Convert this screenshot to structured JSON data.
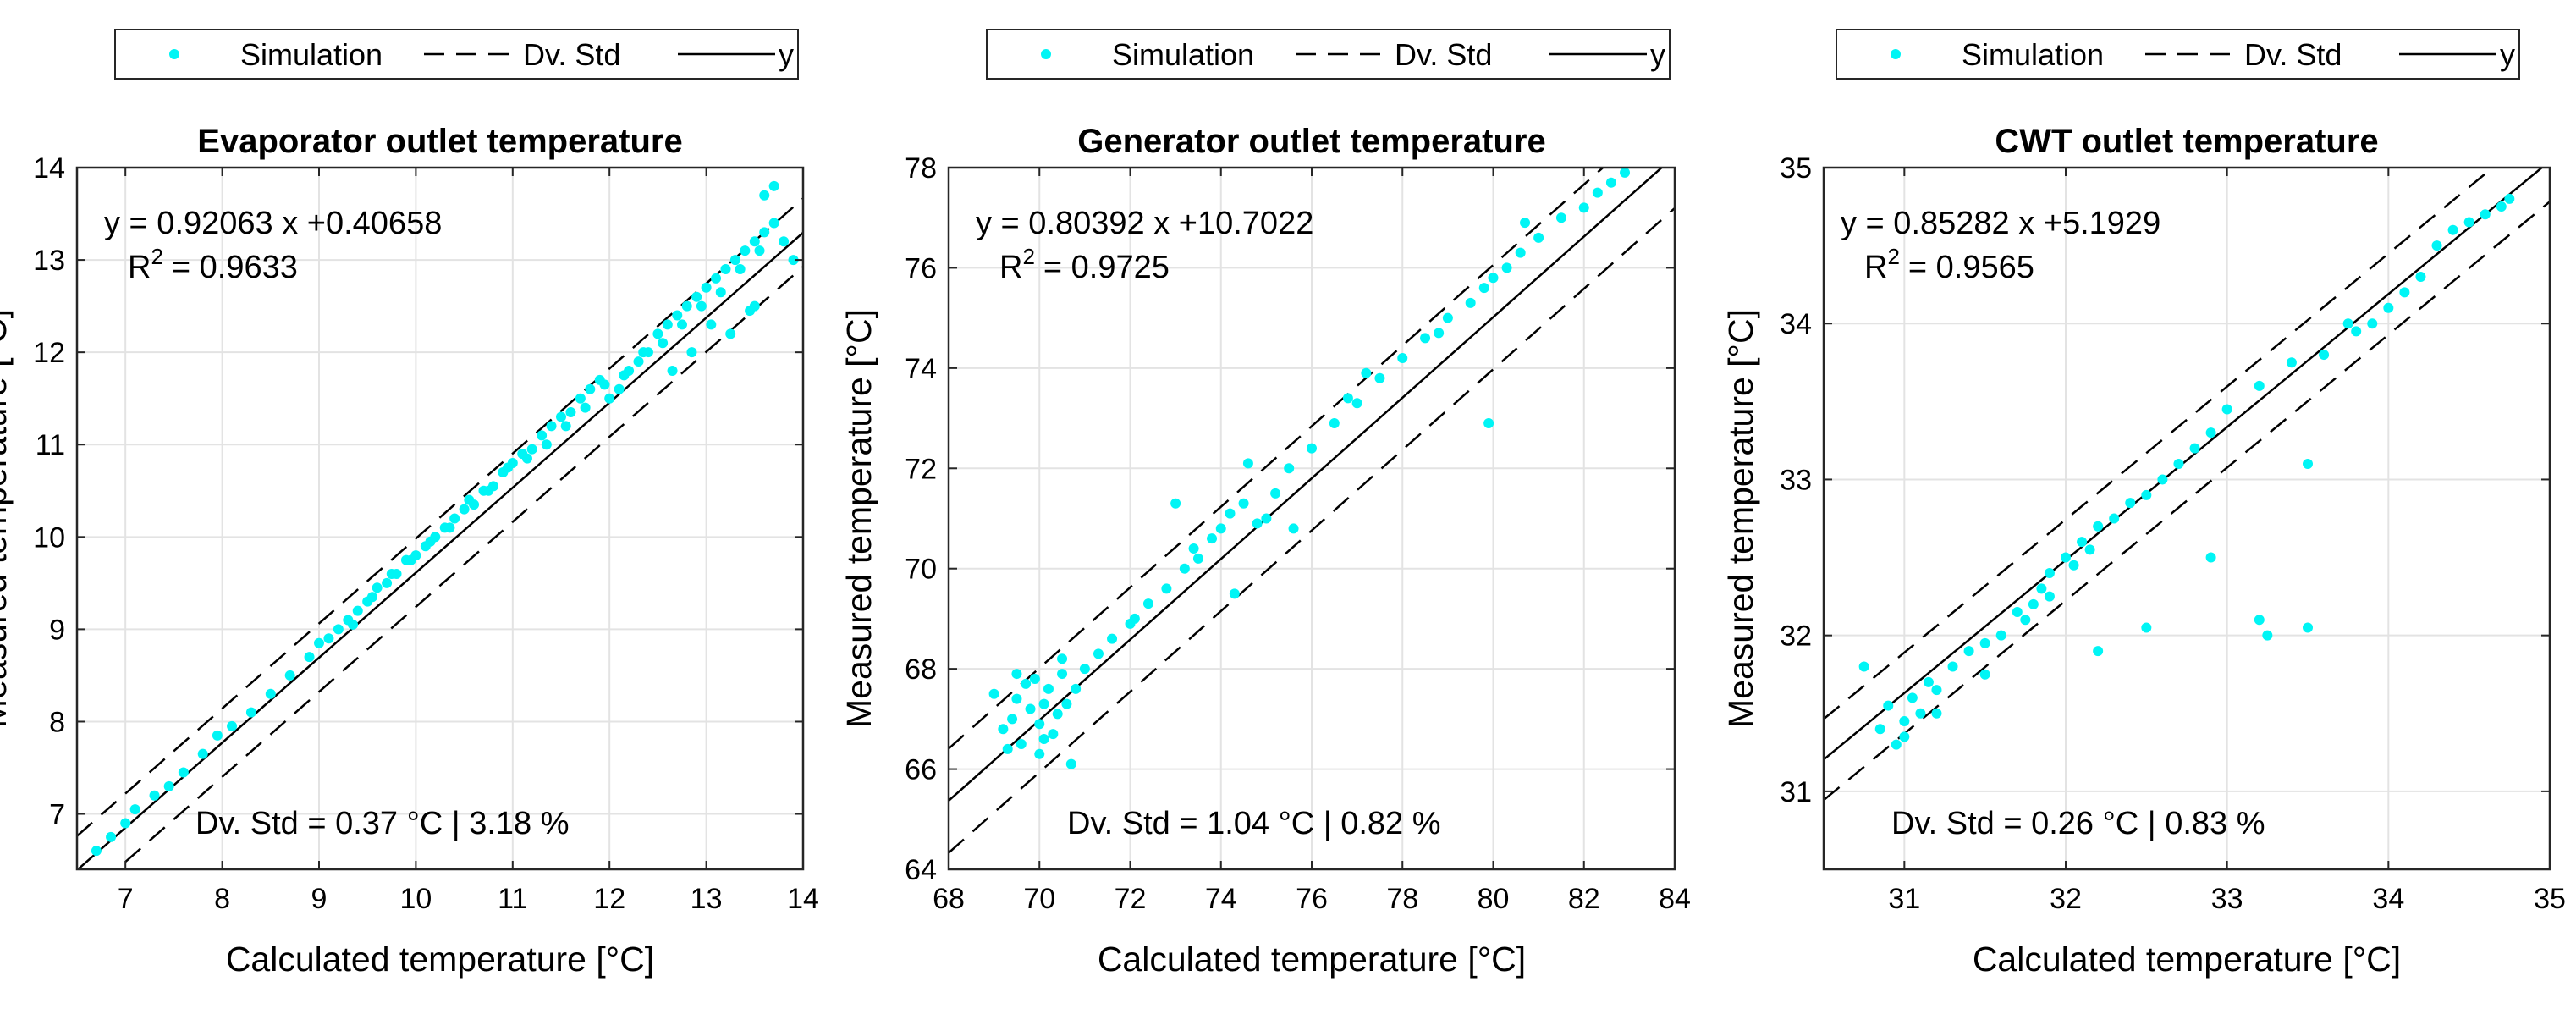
{
  "chart_data": [
    {
      "type": "scatter",
      "title": "Evaporator outlet temperature",
      "xlabel": "Calculated temperature [°C]",
      "ylabel": "Measured temperature [°C]",
      "xlim": [
        6.5,
        14
      ],
      "ylim": [
        6.4,
        14
      ],
      "xticks": [
        "7",
        "8",
        "9",
        "10",
        "11",
        "12",
        "13",
        "14"
      ],
      "yticks": [
        "7",
        "8",
        "9",
        "10",
        "11",
        "12",
        "13",
        "14"
      ],
      "xtick_values": [
        7,
        8,
        9,
        10,
        11,
        12,
        13,
        14
      ],
      "ytick_values": [
        7,
        8,
        9,
        10,
        11,
        12,
        13,
        14
      ],
      "grid": true,
      "legend": {
        "position": "top",
        "entries": [
          "Simulation",
          "Dv. Std",
          "y"
        ]
      },
      "fit": {
        "slope": 0.92063,
        "intercept": 0.40658,
        "offset": 0.37
      },
      "equation_text": "y = 0.92063 x +0.40658",
      "r2_prefix": "R",
      "r2_suffix": "= 0.9633",
      "std_text": "Dv. Std = 0.37 °C | 3.18 %",
      "colors": {
        "points": "#00f5f5",
        "lines": "#000000"
      },
      "series": [
        {
          "name": "Simulation",
          "x": [
            6.7,
            6.85,
            7.0,
            7.1,
            7.3,
            7.45,
            7.6,
            7.8,
            7.95,
            8.1,
            8.3,
            8.5,
            8.7,
            8.9,
            9.0,
            9.1,
            9.2,
            9.3,
            9.4,
            9.5,
            9.6,
            9.7,
            9.8,
            9.9,
            10.0,
            10.1,
            10.2,
            10.3,
            10.4,
            10.5,
            10.6,
            10.7,
            10.8,
            10.9,
            11.0,
            11.1,
            11.2,
            11.3,
            11.4,
            11.5,
            11.6,
            11.7,
            11.8,
            11.9,
            12.0,
            12.1,
            12.2,
            12.3,
            12.4,
            12.5,
            12.6,
            12.7,
            12.8,
            12.9,
            13.0,
            13.1,
            13.2,
            13.3,
            13.4,
            13.5,
            13.6,
            13.7,
            13.8,
            13.9,
            9.35,
            9.55,
            9.75,
            9.95,
            10.15,
            10.35,
            10.55,
            10.75,
            10.95,
            11.15,
            11.35,
            11.55,
            11.75,
            11.95,
            12.15,
            12.35,
            12.55,
            12.75,
            12.95,
            13.15,
            13.35,
            13.55,
            13.45,
            13.25,
            13.05,
            12.85,
            12.65,
            13.6,
            13.7,
            13.5
          ],
          "y": [
            6.6,
            6.75,
            6.9,
            7.05,
            7.2,
            7.3,
            7.45,
            7.65,
            7.85,
            7.95,
            8.1,
            8.3,
            8.5,
            8.7,
            8.85,
            8.9,
            9.0,
            9.1,
            9.2,
            9.3,
            9.45,
            9.5,
            9.6,
            9.75,
            9.8,
            9.9,
            10.0,
            10.1,
            10.2,
            10.3,
            10.35,
            10.5,
            10.55,
            10.7,
            10.8,
            10.9,
            10.95,
            11.1,
            11.2,
            11.3,
            11.35,
            11.5,
            11.6,
            11.7,
            11.5,
            11.6,
            11.8,
            11.9,
            12.0,
            12.2,
            12.3,
            12.4,
            12.5,
            12.6,
            12.7,
            12.8,
            12.9,
            13.0,
            13.1,
            13.2,
            13.3,
            13.4,
            13.2,
            13.0,
            9.05,
            9.35,
            9.6,
            9.75,
            9.95,
            10.1,
            10.4,
            10.5,
            10.75,
            10.85,
            11.0,
            11.2,
            11.4,
            11.65,
            11.75,
            12.0,
            12.1,
            12.3,
            12.5,
            12.65,
            12.9,
            13.1,
            12.45,
            12.2,
            12.3,
            12.0,
            11.8,
            13.7,
            13.8,
            12.5
          ]
        }
      ]
    },
    {
      "type": "scatter",
      "title": "Generator outlet temperature",
      "xlabel": "Calculated temperature [°C]",
      "ylabel": "Measured temperature [°C]",
      "xlim": [
        68,
        84
      ],
      "ylim": [
        64,
        78
      ],
      "xticks": [
        "68",
        "70",
        "72",
        "74",
        "76",
        "78",
        "80",
        "82",
        "84"
      ],
      "yticks": [
        "64",
        "66",
        "68",
        "70",
        "72",
        "74",
        "76",
        "78"
      ],
      "xtick_values": [
        68,
        70,
        72,
        74,
        76,
        78,
        80,
        82,
        84
      ],
      "ytick_values": [
        64,
        66,
        68,
        70,
        72,
        74,
        76,
        78
      ],
      "grid": true,
      "legend": {
        "position": "top",
        "entries": [
          "Simulation",
          "Dv. Std",
          "y"
        ]
      },
      "fit": {
        "slope": 0.80392,
        "intercept": 10.7022,
        "offset": 1.04
      },
      "equation_text": "y = 0.80392 x +10.7022",
      "r2_prefix": "R",
      "r2_suffix": "= 0.9725",
      "std_text": "Dv. Std = 1.04 °C | 0.82 %",
      "colors": {
        "points": "#00f5f5",
        "lines": "#000000"
      },
      "series": [
        {
          "name": "Simulation",
          "x": [
            69.0,
            69.2,
            69.4,
            69.5,
            69.6,
            69.8,
            69.9,
            70.0,
            70.1,
            70.2,
            70.3,
            70.4,
            70.5,
            70.6,
            70.8,
            71.0,
            71.3,
            71.6,
            72.0,
            72.4,
            72.8,
            73.2,
            73.5,
            73.8,
            74.0,
            74.2,
            74.5,
            74.8,
            75.0,
            75.2,
            75.5,
            76.0,
            76.5,
            77.0,
            77.5,
            78.0,
            78.5,
            79.0,
            79.5,
            79.8,
            80.0,
            80.3,
            80.6,
            81.0,
            81.5,
            82.0,
            82.3,
            82.6,
            82.9,
            69.3,
            69.7,
            70.1,
            70.5,
            69.5,
            70.0,
            70.7,
            72.1,
            73.4,
            74.3,
            75.6,
            77.2,
            78.8,
            79.9,
            80.7,
            73.0,
            74.6,
            76.8
          ],
          "y": [
            67.5,
            66.8,
            67.0,
            67.4,
            66.5,
            67.2,
            67.8,
            66.9,
            67.3,
            67.6,
            66.7,
            67.1,
            67.9,
            67.3,
            67.6,
            68.0,
            68.3,
            68.6,
            68.9,
            69.3,
            69.6,
            70.0,
            70.2,
            70.6,
            70.8,
            71.1,
            71.3,
            70.9,
            71.0,
            71.5,
            72.0,
            72.4,
            72.9,
            73.3,
            73.8,
            74.2,
            74.6,
            75.0,
            75.3,
            75.6,
            75.8,
            76.0,
            76.3,
            76.6,
            77.0,
            77.2,
            77.5,
            77.7,
            77.9,
            66.4,
            67.7,
            66.6,
            68.2,
            67.9,
            66.3,
            66.1,
            69.0,
            70.4,
            69.5,
            70.8,
            73.9,
            74.7,
            72.9,
            76.9,
            71.3,
            72.1,
            73.4
          ]
        }
      ]
    },
    {
      "type": "scatter",
      "title": "CWT outlet temperature",
      "xlabel": "Calculated temperature [°C]",
      "ylabel": "Measured temperature [°C]",
      "xlim": [
        30.5,
        35
      ],
      "ylim": [
        30.5,
        35
      ],
      "xticks": [
        "31",
        "32",
        "33",
        "34",
        "35"
      ],
      "yticks": [
        "31",
        "32",
        "33",
        "34",
        "35"
      ],
      "xtick_values": [
        31,
        32,
        33,
        34,
        35
      ],
      "ytick_values": [
        31,
        32,
        33,
        34,
        35
      ],
      "grid": true,
      "legend": {
        "position": "top",
        "entries": [
          "Simulation",
          "Dv. Std",
          "y"
        ]
      },
      "fit": {
        "slope": 0.85282,
        "intercept": 5.1929,
        "offset": 0.26
      },
      "equation_text": "y = 0.85282 x +5.1929",
      "r2_prefix": "R",
      "r2_suffix": "= 0.9565",
      "std_text": "Dv. Std = 0.26 °C | 0.83 %",
      "colors": {
        "points": "#00f5f5",
        "lines": "#000000"
      },
      "series": [
        {
          "name": "Simulation",
          "x": [
            30.75,
            30.85,
            30.9,
            30.95,
            31.0,
            31.05,
            31.1,
            31.15,
            31.2,
            31.3,
            31.4,
            31.5,
            31.6,
            31.7,
            31.75,
            31.8,
            31.85,
            31.9,
            32.0,
            32.05,
            32.1,
            32.15,
            32.2,
            32.3,
            32.4,
            32.5,
            32.6,
            32.7,
            32.8,
            32.9,
            33.0,
            33.2,
            33.4,
            33.6,
            33.8,
            33.9,
            34.0,
            34.1,
            34.2,
            34.3,
            34.4,
            34.5,
            34.6,
            34.7,
            34.75,
            32.9,
            33.2,
            33.25,
            33.5,
            33.5,
            32.2,
            32.5,
            33.75,
            31.0,
            31.2,
            31.5,
            31.9
          ],
          "y": [
            31.8,
            31.4,
            31.55,
            31.3,
            31.45,
            31.6,
            31.5,
            31.7,
            31.65,
            31.8,
            31.9,
            31.95,
            32.0,
            32.15,
            32.1,
            32.2,
            32.3,
            32.4,
            32.5,
            32.45,
            32.6,
            32.55,
            32.7,
            32.75,
            32.85,
            32.9,
            33.0,
            33.1,
            33.2,
            33.3,
            33.45,
            33.6,
            33.75,
            33.8,
            33.95,
            34.0,
            34.1,
            34.2,
            34.3,
            34.5,
            34.6,
            34.65,
            34.7,
            34.75,
            34.8,
            32.5,
            32.1,
            32.0,
            32.05,
            33.1,
            31.9,
            32.05,
            34.0,
            31.35,
            31.5,
            31.75,
            32.25
          ]
        }
      ]
    }
  ]
}
